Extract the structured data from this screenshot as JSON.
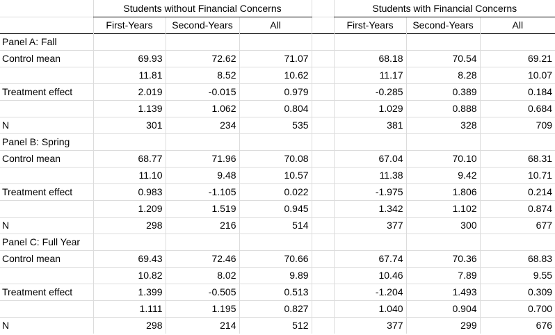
{
  "groups": [
    "Students without Financial Concerns",
    "Students with Financial Concerns"
  ],
  "subheaders": [
    "First-Years",
    "Second-Years",
    "All",
    "First-Years",
    "Second-Years",
    "All"
  ],
  "panels": [
    {
      "title": "Panel A: Fall",
      "rows": [
        {
          "label": "Control mean",
          "values": [
            "69.93",
            "72.62",
            "71.07",
            "68.18",
            "70.54",
            "69.21"
          ]
        },
        {
          "label": "",
          "values": [
            "11.81",
            "8.52",
            "10.62",
            "11.17",
            "8.28",
            "10.07"
          ]
        },
        {
          "label": "Treatment effect",
          "values": [
            "2.019",
            "-0.015",
            "0.979",
            "-0.285",
            "0.389",
            "0.184"
          ]
        },
        {
          "label": "",
          "values": [
            "1.139",
            "1.062",
            "0.804",
            "1.029",
            "0.888",
            "0.684"
          ]
        },
        {
          "label": "N",
          "values": [
            "301",
            "234",
            "535",
            "381",
            "328",
            "709"
          ]
        }
      ]
    },
    {
      "title": "Panel B: Spring",
      "rows": [
        {
          "label": "Control mean",
          "values": [
            "68.77",
            "71.96",
            "70.08",
            "67.04",
            "70.10",
            "68.31"
          ]
        },
        {
          "label": "",
          "values": [
            "11.10",
            "9.48",
            "10.57",
            "11.38",
            "9.42",
            "10.71"
          ]
        },
        {
          "label": "Treatment effect",
          "values": [
            "0.983",
            "-1.105",
            "0.022",
            "-1.975",
            "1.806",
            "0.214"
          ]
        },
        {
          "label": "",
          "values": [
            "1.209",
            "1.519",
            "0.945",
            "1.342",
            "1.102",
            "0.874"
          ]
        },
        {
          "label": "N",
          "values": [
            "298",
            "216",
            "514",
            "377",
            "300",
            "677"
          ]
        }
      ]
    },
    {
      "title": "Panel C: Full Year",
      "rows": [
        {
          "label": "Control mean",
          "values": [
            "69.43",
            "72.46",
            "70.66",
            "67.74",
            "70.36",
            "68.83"
          ]
        },
        {
          "label": "",
          "values": [
            "10.82",
            "8.02",
            "9.89",
            "10.46",
            "7.89",
            "9.55"
          ]
        },
        {
          "label": "Treatment effect",
          "values": [
            "1.399",
            "-0.505",
            "0.513",
            "-1.204",
            "1.493",
            "0.309"
          ]
        },
        {
          "label": "",
          "values": [
            "1.111",
            "1.195",
            "0.827",
            "1.040",
            "0.904",
            "0.700"
          ]
        },
        {
          "label": "N",
          "values": [
            "298",
            "214",
            "512",
            "377",
            "299",
            "676"
          ]
        }
      ]
    }
  ]
}
